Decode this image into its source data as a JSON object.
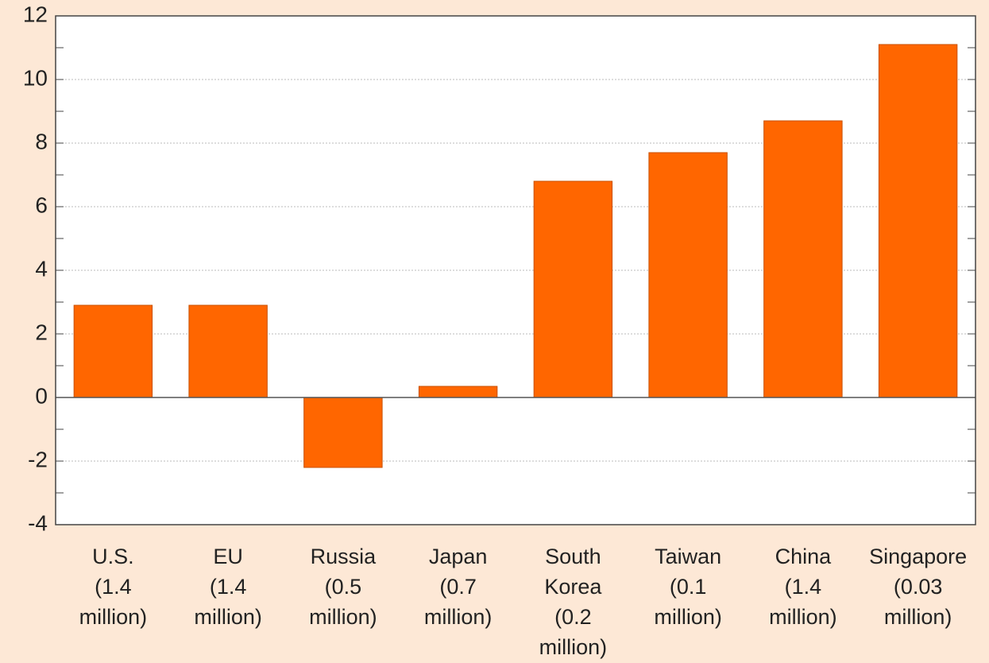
{
  "chart_data": {
    "type": "bar",
    "categories": [
      [
        "U.S.",
        "(1.4",
        "million)"
      ],
      [
        "EU",
        "(1.4",
        "million)"
      ],
      [
        "Russia",
        "(0.5",
        "million)"
      ],
      [
        "Japan",
        "(0.7",
        "million)"
      ],
      [
        "South",
        "Korea",
        "(0.2",
        "million)"
      ],
      [
        "Taiwan",
        "(0.1",
        "million)"
      ],
      [
        "China",
        "(1.4",
        "million)"
      ],
      [
        "Singapore",
        "(0.03",
        "million)"
      ]
    ],
    "values": [
      2.9,
      2.9,
      -2.2,
      0.35,
      6.8,
      7.7,
      8.7,
      11.1
    ],
    "color": "#ff6600",
    "ylim": [
      -4,
      12
    ],
    "yticks": [
      -4,
      -2,
      0,
      2,
      4,
      6,
      8,
      10,
      12
    ],
    "minor_yticks": [
      -3,
      -1,
      1,
      3,
      5,
      7,
      9,
      11
    ],
    "grid": true
  }
}
